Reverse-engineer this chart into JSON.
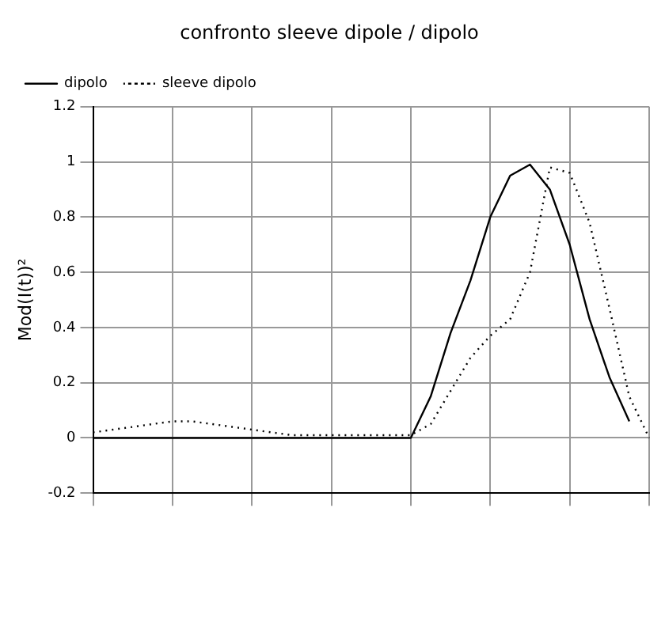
{
  "chart_data": {
    "type": "line",
    "title": "confronto sleeve dipole / dipolo",
    "ylabel": "Mod(I(t))²",
    "categories": [
      null,
      null,
      null,
      null,
      null,
      null,
      null,
      null,
      null,
      null,
      null,
      null,
      null,
      null,
      null,
      null,
      null,
      null,
      null,
      null,
      null,
      null,
      null,
      null,
      null,
      null,
      null,
      null,
      null
    ],
    "series": [
      {
        "name": "dipolo",
        "color": "#000000",
        "line_style": "solid",
        "values": [
          0,
          0,
          0,
          0,
          0,
          0,
          0,
          0,
          0,
          0,
          0,
          0,
          0,
          0,
          0,
          0,
          0,
          0.15,
          0.38,
          0.57,
          0.8,
          0.95,
          0.99,
          0.9,
          0.7,
          0.43,
          0.22,
          0.06,
          null
        ]
      },
      {
        "name": "sleeve dipolo",
        "color": "#000000",
        "line_style": "dotted",
        "values": [
          0.02,
          0.03,
          0.04,
          0.05,
          0.06,
          0.06,
          0.05,
          0.04,
          0.03,
          0.02,
          0.01,
          0.01,
          0.01,
          0.01,
          0.01,
          0.01,
          0.01,
          0.05,
          0.17,
          0.29,
          0.37,
          0.43,
          0.6,
          0.98,
          0.96,
          0.78,
          0.47,
          0.15,
          0
        ]
      }
    ],
    "ylim": [
      -0.2,
      1.2
    ],
    "yticks": [
      -0.2,
      0,
      0.2,
      0.4,
      0.6,
      0.8,
      1,
      1.2
    ],
    "grid": true,
    "legend": "top left",
    "marker": "none"
  }
}
